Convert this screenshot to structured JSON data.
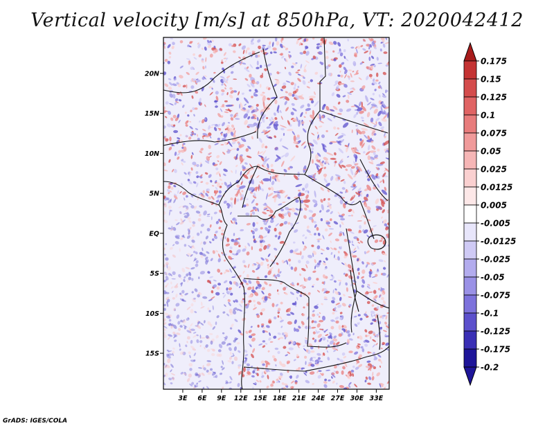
{
  "title": "Vertical velocity [m/s] at 850hPa, VT: 2020042412",
  "credit": "GrADS: IGES/COLA",
  "map": {
    "lat_labels": [
      "20N",
      "15N",
      "10N",
      "5N",
      "EQ",
      "5S",
      "10S",
      "15S"
    ],
    "lon_labels": [
      "3E",
      "6E",
      "9E",
      "12E",
      "15E",
      "18E",
      "21E",
      "24E",
      "27E",
      "30E",
      "33E"
    ],
    "lat_range": [
      -19.5,
      24.5
    ],
    "lon_range": [
      0,
      35
    ]
  },
  "colorbar": {
    "levels": [
      "0.175",
      "0.15",
      "0.125",
      "0.1",
      "0.075",
      "0.05",
      "0.025",
      "0.0125",
      "0.005",
      "-0.005",
      "-0.0125",
      "-0.025",
      "-0.05",
      "-0.075",
      "-0.1",
      "-0.125",
      "-0.175",
      "-0.2"
    ],
    "colors": [
      "#a81c1c",
      "#c43333",
      "#d44c4c",
      "#e06464",
      "#e87c7c",
      "#f09a9a",
      "#f6b6b6",
      "#fad0d0",
      "#fde8e8",
      "#ffffff",
      "#e8e6fb",
      "#cfcaf5",
      "#b3acee",
      "#9a91e6",
      "#7d72dc",
      "#5c50cc",
      "#3a2fb5",
      "#1e1599"
    ]
  }
}
